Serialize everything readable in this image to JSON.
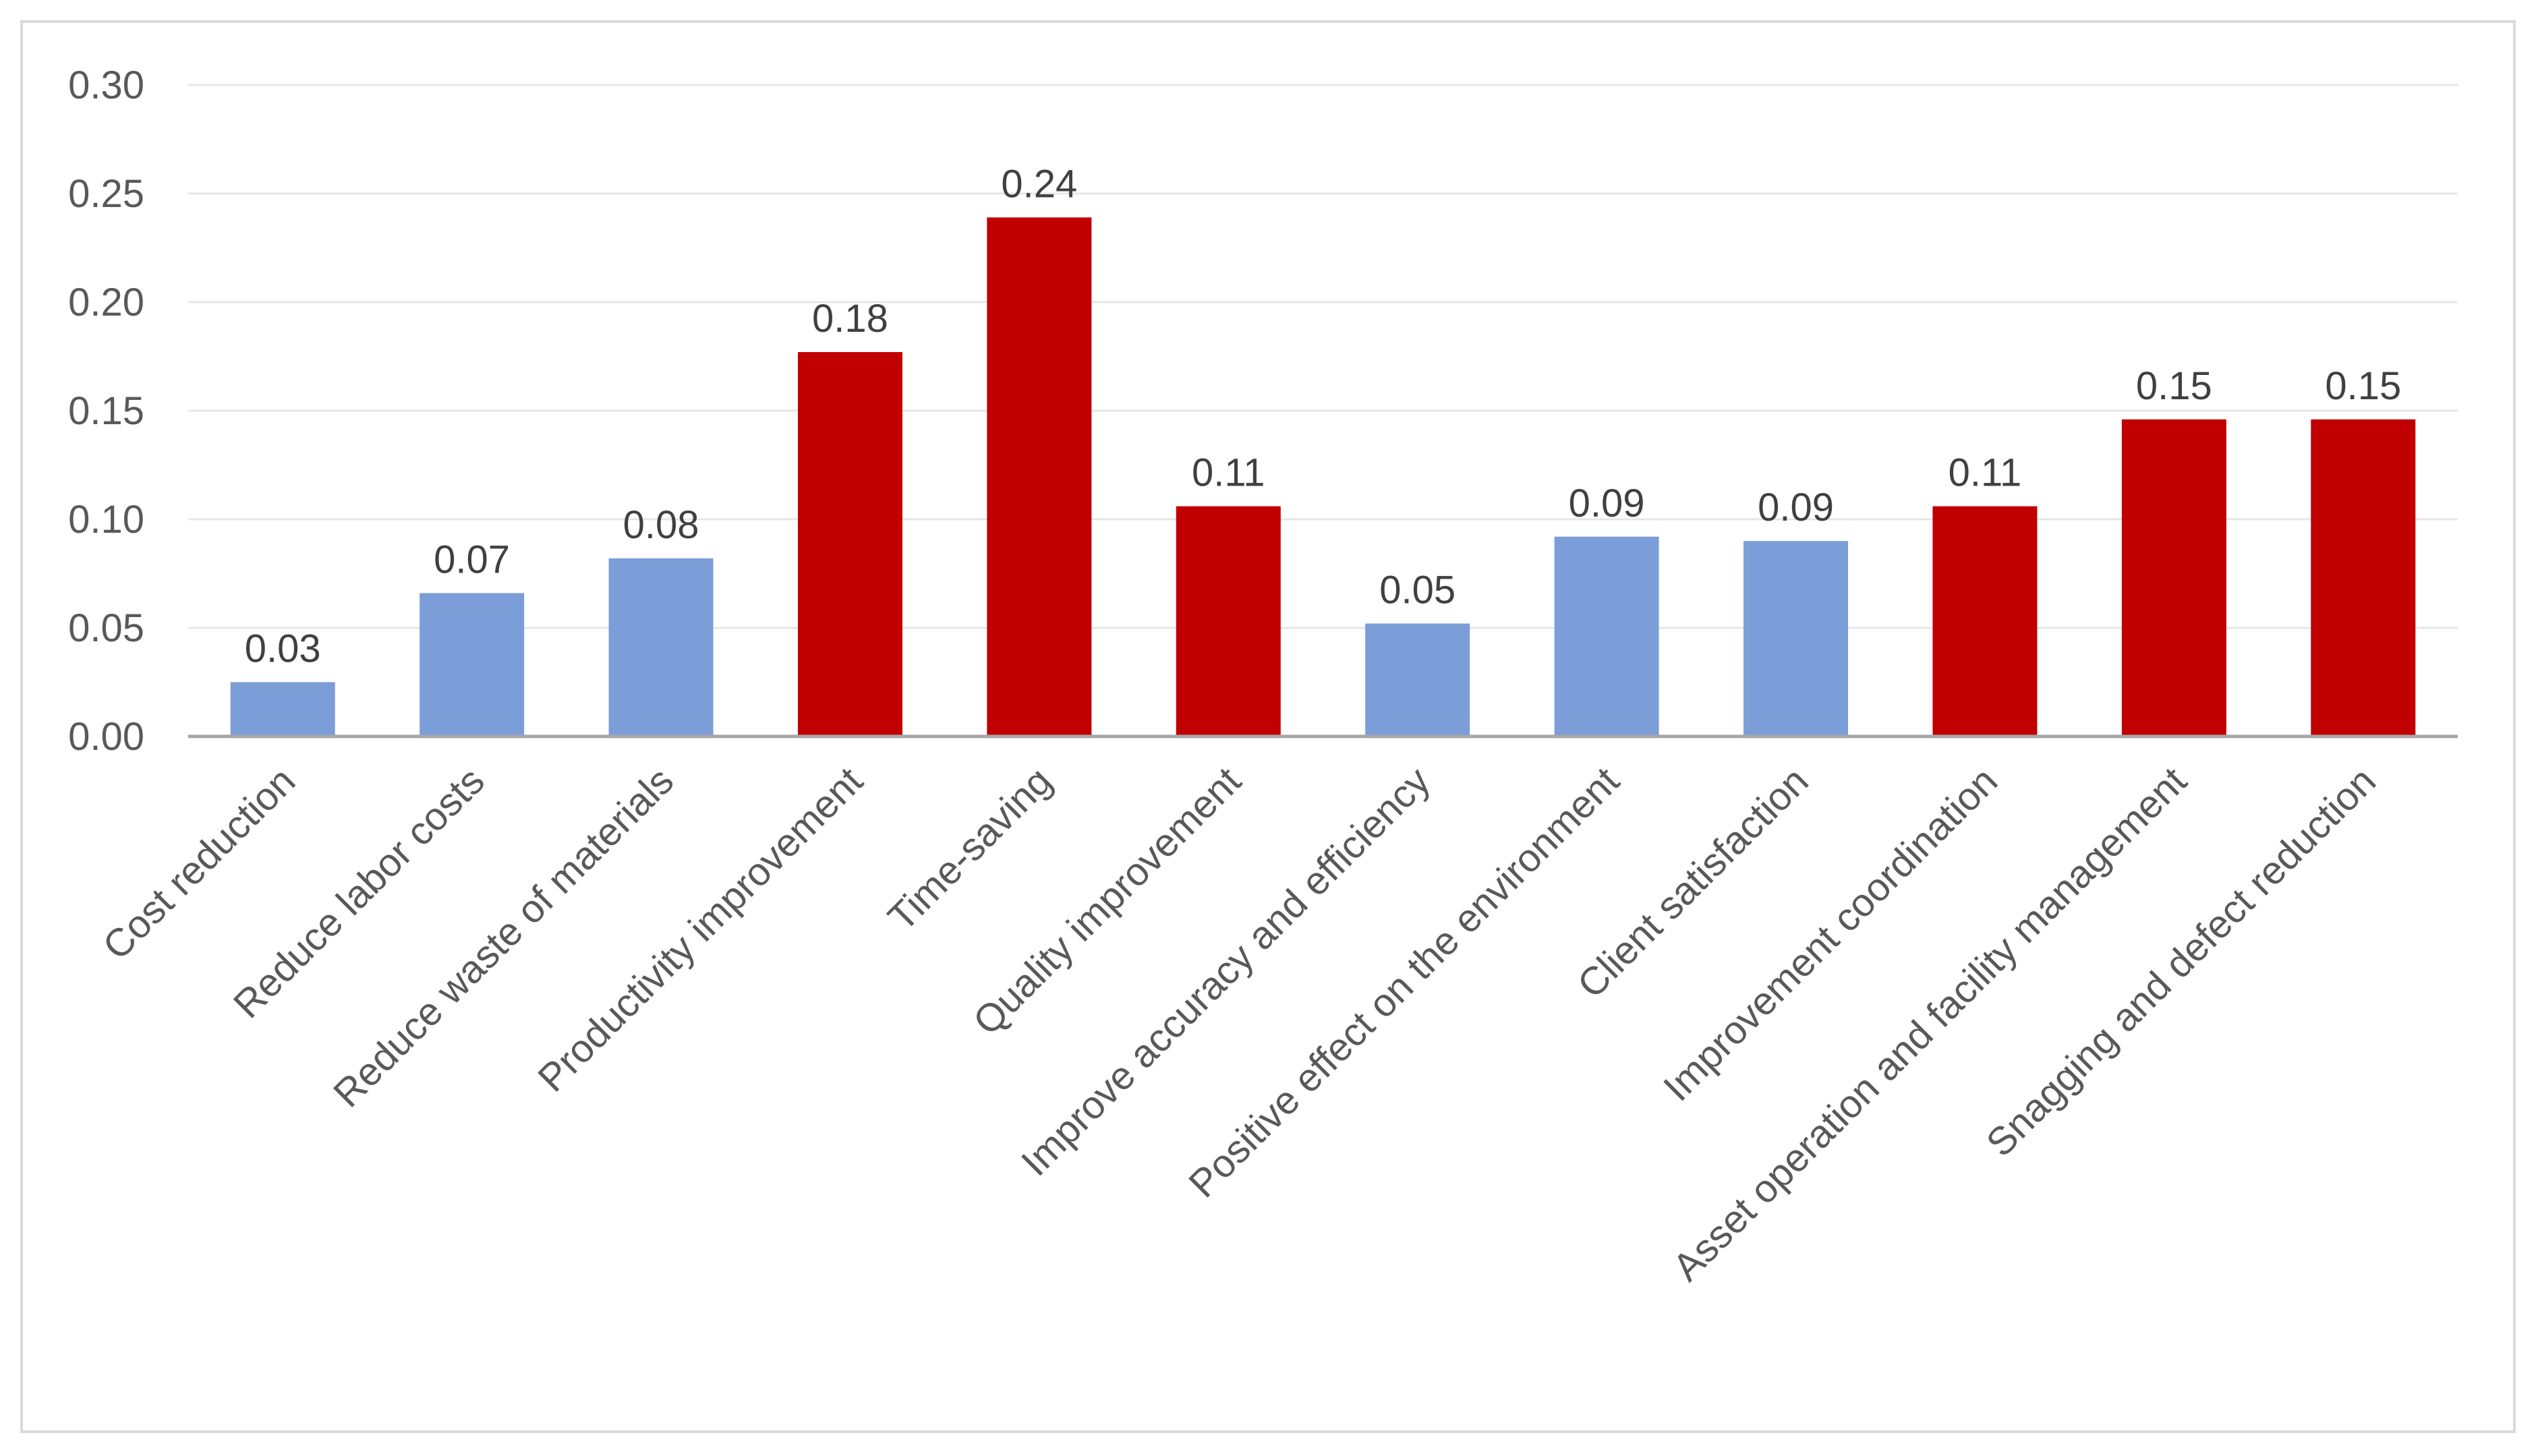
{
  "chart_data": {
    "type": "bar",
    "title": "",
    "xlabel": "",
    "ylabel": "",
    "ylim": [
      0,
      0.3
    ],
    "yticks": [
      "0.00",
      "0.05",
      "0.10",
      "0.15",
      "0.20",
      "0.25",
      "0.30"
    ],
    "ytick_values": [
      0,
      0.05,
      0.1,
      0.15,
      0.2,
      0.25,
      0.3
    ],
    "grid": true,
    "legend": "none",
    "categories": [
      "Cost reduction",
      "Reduce labor costs",
      "Reduce waste of materials",
      "Productivity improvement",
      "Time-saving",
      "Quality improvement",
      "Improve accuracy and efficiency",
      "Positive effect on the environment",
      "Client satisfaction",
      "Improvement coordination",
      "Asset operation and facility management",
      "Snagging and defect reduction"
    ],
    "values": [
      0.025,
      0.066,
      0.082,
      0.177,
      0.239,
      0.106,
      0.052,
      0.092,
      0.09,
      0.106,
      0.146,
      0.146
    ],
    "data_labels": [
      "0.03",
      "0.07",
      "0.08",
      "0.18",
      "0.24",
      "0.11",
      "0.05",
      "0.09",
      "0.09",
      "0.11",
      "0.15",
      "0.15"
    ],
    "bar_colors": [
      "#7b9ed8",
      "#7b9ed8",
      "#7b9ed8",
      "#c00000",
      "#c00000",
      "#c00000",
      "#7b9ed8",
      "#7b9ed8",
      "#7b9ed8",
      "#c00000",
      "#c00000",
      "#c00000"
    ],
    "colors": {
      "gridline": "#e6e6e6",
      "axis": "#a6a6a6",
      "border": "#d9d9d9"
    }
  }
}
